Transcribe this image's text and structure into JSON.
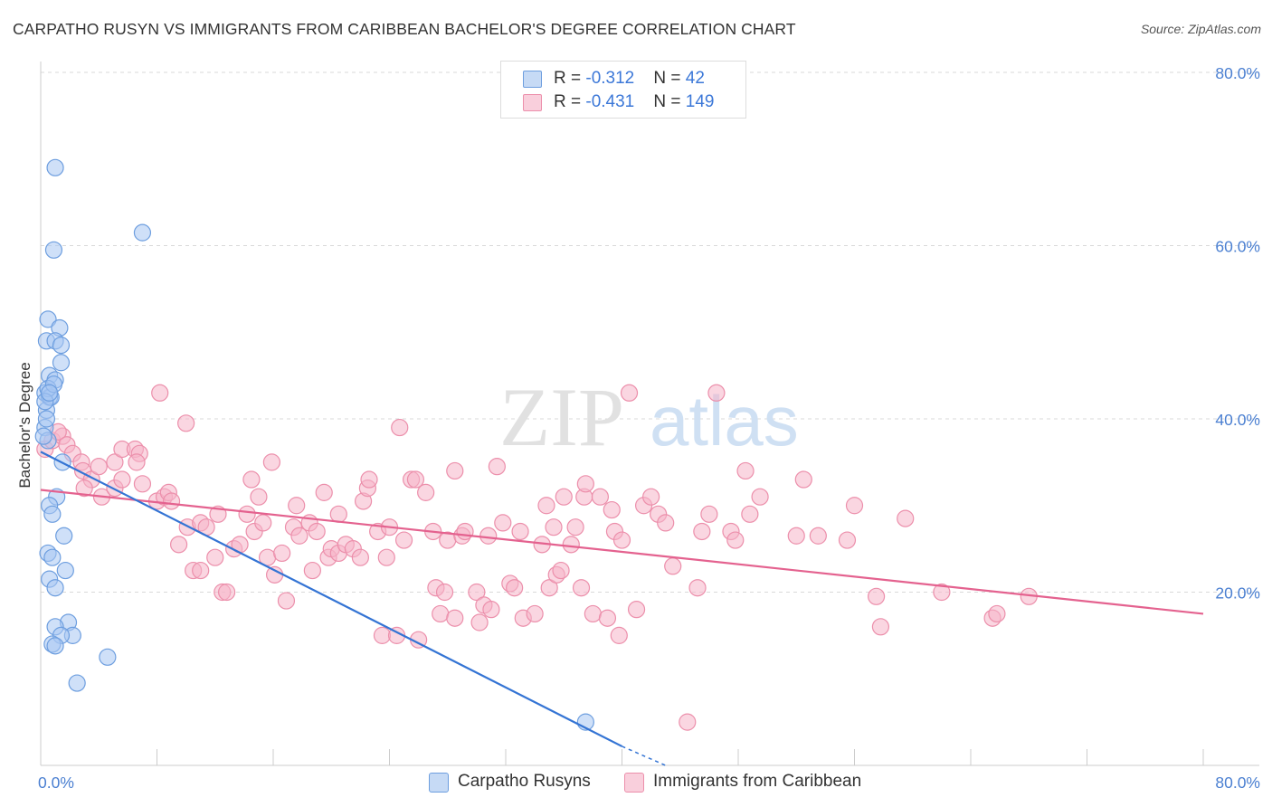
{
  "title": "CARPATHO RUSYN VS IMMIGRANTS FROM CARIBBEAN BACHELOR'S DEGREE CORRELATION CHART",
  "source": "Source: ZipAtlas.com",
  "watermark": {
    "zip": "ZIP",
    "atlas": "atlas"
  },
  "legend": [
    {
      "r_label": "R = ",
      "r_value": "-0.312",
      "n_label": "N = ",
      "n_value": " 42"
    },
    {
      "r_label": "R = ",
      "r_value": "-0.431",
      "n_label": "N = ",
      "n_value": "149"
    }
  ],
  "bottom_legend": [
    "Carpatho Rusyns",
    "Immigrants from Caribbean"
  ],
  "colors": {
    "blue_fill": "#a7c7f2",
    "blue_stroke": "#6d9edf",
    "blue_line": "#3474d4",
    "pink_fill": "#f6b5c9",
    "pink_stroke": "#ec8fab",
    "pink_line": "#e4628f",
    "grid": "#d9d9d9",
    "tick_text": "#4a7fd1"
  },
  "chart_data": {
    "type": "scatter",
    "title": "CARPATHO RUSYN VS IMMIGRANTS FROM CARIBBEAN BACHELOR'S DEGREE CORRELATION CHART",
    "xlabel": "",
    "ylabel": "Bachelor's Degree",
    "xlim": [
      0,
      80
    ],
    "ylim": [
      0,
      80
    ],
    "x_tick_labels": [
      "0.0%",
      "80.0%"
    ],
    "y_tick_labels": [
      "20.0%",
      "40.0%",
      "60.0%",
      "80.0%"
    ],
    "y_ticks": [
      20,
      40,
      60,
      80
    ],
    "grid": true,
    "series": [
      {
        "name": "Carpatho Rusyns",
        "color": "#a7c7f2",
        "points": [
          [
            1.0,
            69.0
          ],
          [
            0.9,
            59.5
          ],
          [
            7.0,
            61.5
          ],
          [
            0.5,
            51.5
          ],
          [
            1.3,
            50.5
          ],
          [
            0.4,
            49.0
          ],
          [
            1.0,
            49.0
          ],
          [
            1.4,
            48.5
          ],
          [
            1.4,
            46.5
          ],
          [
            0.6,
            45.0
          ],
          [
            1.0,
            44.5
          ],
          [
            0.3,
            43.0
          ],
          [
            0.6,
            42.5
          ],
          [
            0.4,
            41.0
          ],
          [
            0.3,
            39.0
          ],
          [
            0.5,
            37.5
          ],
          [
            1.5,
            35.0
          ],
          [
            1.1,
            31.0
          ],
          [
            0.6,
            30.0
          ],
          [
            0.8,
            29.0
          ],
          [
            1.6,
            26.5
          ],
          [
            0.5,
            24.5
          ],
          [
            0.8,
            24.0
          ],
          [
            1.7,
            22.5
          ],
          [
            0.6,
            21.5
          ],
          [
            1.0,
            20.5
          ],
          [
            1.9,
            16.5
          ],
          [
            1.0,
            16.0
          ],
          [
            2.2,
            15.0
          ],
          [
            1.4,
            15.0
          ],
          [
            0.8,
            14.0
          ],
          [
            1.0,
            13.8
          ],
          [
            4.6,
            12.5
          ],
          [
            2.5,
            9.5
          ],
          [
            37.5,
            5.0
          ],
          [
            0.7,
            42.5
          ],
          [
            0.5,
            43.5
          ],
          [
            0.3,
            42.0
          ],
          [
            0.9,
            44.0
          ],
          [
            0.2,
            38.0
          ],
          [
            0.4,
            40.0
          ],
          [
            0.6,
            43.0
          ]
        ],
        "trend": {
          "x": [
            0,
            40
          ],
          "y": [
            36.2,
            2.2
          ],
          "dashed_to": [
            43,
            0
          ]
        }
      },
      {
        "name": "Immigrants from Caribbean",
        "color": "#f6b5c9",
        "points": [
          [
            0.3,
            36.5
          ],
          [
            0.8,
            37.5
          ],
          [
            1.5,
            38.0
          ],
          [
            1.2,
            38.5
          ],
          [
            1.8,
            37.0
          ],
          [
            2.2,
            36.0
          ],
          [
            2.8,
            35.0
          ],
          [
            2.9,
            34.0
          ],
          [
            3.5,
            33.0
          ],
          [
            3.0,
            32.0
          ],
          [
            4.0,
            34.5
          ],
          [
            4.2,
            31.0
          ],
          [
            5.1,
            32.0
          ],
          [
            5.6,
            33.0
          ],
          [
            5.1,
            35.0
          ],
          [
            5.6,
            36.5
          ],
          [
            6.5,
            36.5
          ],
          [
            6.8,
            36.0
          ],
          [
            6.6,
            35.0
          ],
          [
            7.0,
            32.5
          ],
          [
            8.0,
            30.5
          ],
          [
            8.5,
            31.0
          ],
          [
            8.8,
            31.5
          ],
          [
            8.2,
            43.0
          ],
          [
            9.0,
            30.5
          ],
          [
            10.0,
            39.5
          ],
          [
            10.1,
            27.5
          ],
          [
            9.5,
            25.5
          ],
          [
            10.5,
            22.5
          ],
          [
            11.0,
            22.5
          ],
          [
            11.0,
            28.0
          ],
          [
            11.4,
            27.5
          ],
          [
            12.2,
            29.0
          ],
          [
            12.0,
            24.0
          ],
          [
            12.5,
            20.0
          ],
          [
            12.8,
            20.0
          ],
          [
            13.3,
            25.0
          ],
          [
            13.7,
            25.5
          ],
          [
            14.2,
            29.0
          ],
          [
            14.5,
            33.0
          ],
          [
            14.7,
            27.0
          ],
          [
            15.0,
            31.0
          ],
          [
            15.3,
            28.0
          ],
          [
            15.6,
            24.0
          ],
          [
            15.9,
            35.0
          ],
          [
            16.1,
            22.0
          ],
          [
            16.6,
            24.5
          ],
          [
            16.9,
            19.0
          ],
          [
            17.4,
            27.5
          ],
          [
            17.6,
            30.0
          ],
          [
            17.8,
            26.5
          ],
          [
            18.5,
            28.0
          ],
          [
            18.7,
            22.5
          ],
          [
            19.0,
            27.0
          ],
          [
            19.5,
            31.5
          ],
          [
            19.8,
            24.0
          ],
          [
            20.5,
            29.0
          ],
          [
            20.0,
            25.0
          ],
          [
            20.5,
            24.5
          ],
          [
            21.0,
            25.5
          ],
          [
            21.5,
            25.0
          ],
          [
            22.0,
            24.0
          ],
          [
            22.2,
            30.5
          ],
          [
            22.5,
            32.0
          ],
          [
            22.6,
            33.0
          ],
          [
            23.2,
            27.0
          ],
          [
            23.5,
            15.0
          ],
          [
            23.8,
            24.0
          ],
          [
            24.0,
            27.5
          ],
          [
            24.5,
            15.0
          ],
          [
            24.7,
            39.0
          ],
          [
            25.0,
            26.0
          ],
          [
            25.5,
            33.0
          ],
          [
            25.8,
            33.0
          ],
          [
            26.0,
            14.5
          ],
          [
            26.5,
            31.5
          ],
          [
            27.0,
            27.0
          ],
          [
            27.2,
            20.5
          ],
          [
            27.5,
            17.5
          ],
          [
            27.8,
            20.0
          ],
          [
            28.0,
            26.0
          ],
          [
            28.5,
            34.0
          ],
          [
            28.5,
            17.0
          ],
          [
            29.0,
            26.5
          ],
          [
            29.2,
            27.0
          ],
          [
            30.0,
            20.0
          ],
          [
            30.2,
            16.5
          ],
          [
            30.5,
            18.5
          ],
          [
            30.8,
            26.5
          ],
          [
            31.0,
            18.0
          ],
          [
            31.4,
            34.5
          ],
          [
            31.8,
            28.0
          ],
          [
            32.3,
            21.0
          ],
          [
            32.6,
            20.5
          ],
          [
            33.0,
            27.0
          ],
          [
            33.2,
            17.0
          ],
          [
            34.0,
            17.5
          ],
          [
            34.5,
            25.5
          ],
          [
            34.8,
            30.0
          ],
          [
            35.0,
            20.5
          ],
          [
            35.3,
            27.5
          ],
          [
            35.5,
            22.0
          ],
          [
            35.8,
            22.5
          ],
          [
            36.0,
            31.0
          ],
          [
            36.5,
            25.5
          ],
          [
            36.8,
            27.5
          ],
          [
            37.2,
            20.5
          ],
          [
            37.4,
            31.0
          ],
          [
            37.5,
            32.5
          ],
          [
            38.0,
            17.5
          ],
          [
            38.5,
            31.0
          ],
          [
            39.0,
            17.0
          ],
          [
            39.5,
            27.0
          ],
          [
            39.8,
            15.0
          ],
          [
            40.0,
            26.0
          ],
          [
            40.5,
            43.0
          ],
          [
            41.0,
            18.0
          ],
          [
            41.5,
            30.0
          ],
          [
            42.0,
            31.0
          ],
          [
            42.5,
            29.0
          ],
          [
            43.0,
            28.0
          ],
          [
            43.5,
            23.0
          ],
          [
            44.5,
            5.0
          ],
          [
            45.2,
            20.5
          ],
          [
            45.5,
            27.0
          ],
          [
            46.0,
            29.0
          ],
          [
            47.5,
            27.0
          ],
          [
            47.8,
            26.0
          ],
          [
            48.5,
            34.0
          ],
          [
            48.8,
            29.0
          ],
          [
            49.5,
            31.0
          ],
          [
            52.0,
            26.5
          ],
          [
            52.5,
            33.0
          ],
          [
            53.5,
            26.5
          ],
          [
            55.5,
            26.0
          ],
          [
            56.0,
            30.0
          ],
          [
            57.5,
            19.5
          ],
          [
            57.8,
            16.0
          ],
          [
            59.5,
            28.5
          ],
          [
            62.0,
            20.0
          ],
          [
            65.5,
            17.0
          ],
          [
            65.8,
            17.5
          ],
          [
            68.0,
            19.5
          ],
          [
            39.3,
            29.5
          ],
          [
            46.5,
            43.0
          ]
        ],
        "trend": {
          "x": [
            0,
            80
          ],
          "y": [
            31.8,
            17.5
          ]
        }
      }
    ]
  }
}
